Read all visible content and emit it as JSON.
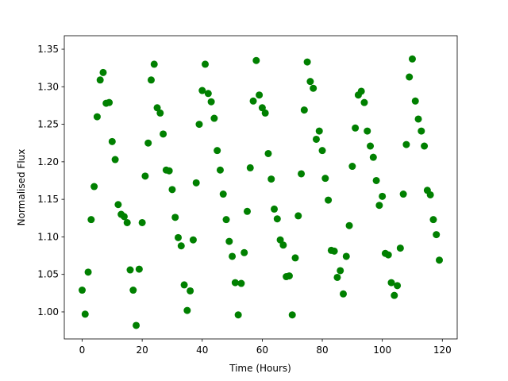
{
  "chart_data": {
    "type": "scatter",
    "xlabel": "Time (Hours)",
    "ylabel": "Normalised Flux",
    "color": "#008000",
    "x": [
      0,
      1,
      2,
      3,
      4,
      5,
      6,
      7,
      8,
      9,
      10,
      11,
      12,
      13,
      14,
      15,
      16,
      17,
      18,
      19,
      20,
      21,
      22,
      23,
      24,
      25,
      26,
      27,
      28,
      29,
      30,
      31,
      32,
      33,
      34,
      35,
      36,
      37,
      38,
      39,
      40,
      41,
      42,
      43,
      44,
      45,
      46,
      47,
      48,
      49,
      50,
      51,
      52,
      53,
      54,
      55,
      56,
      57,
      58,
      59,
      60,
      61,
      62,
      63,
      64,
      65,
      66,
      67,
      68,
      69,
      70,
      71,
      72,
      73,
      74,
      75,
      76,
      77,
      78,
      79,
      80,
      81,
      82,
      83,
      84,
      85,
      86,
      87,
      88,
      89,
      90,
      91,
      92,
      93,
      94,
      95,
      96,
      97,
      98,
      99,
      100,
      101,
      102,
      103,
      104,
      105,
      106,
      107,
      108,
      109,
      110,
      111,
      112,
      113,
      114,
      115,
      116,
      117,
      118,
      119
    ],
    "y": [
      1.029,
      0.997,
      1.053,
      1.123,
      1.167,
      1.26,
      1.309,
      1.319,
      1.278,
      1.279,
      1.227,
      1.203,
      1.143,
      1.13,
      1.127,
      1.119,
      1.056,
      1.029,
      0.982,
      1.057,
      1.119,
      1.181,
      1.225,
      1.309,
      1.33,
      1.272,
      1.265,
      1.237,
      1.189,
      1.188,
      1.163,
      1.126,
      1.099,
      1.088,
      1.036,
      1.002,
      1.028,
      1.096,
      1.172,
      1.25,
      1.295,
      1.33,
      1.291,
      1.28,
      1.258,
      1.215,
      1.189,
      1.157,
      1.123,
      1.094,
      1.074,
      1.039,
      0.996,
      1.038,
      1.079,
      1.134,
      1.192,
      1.281,
      1.335,
      1.289,
      1.272,
      1.265,
      1.211,
      1.177,
      1.137,
      1.124,
      1.096,
      1.089,
      1.047,
      1.048,
      0.996,
      1.072,
      1.128,
      1.184,
      1.269,
      1.333,
      1.307,
      1.298,
      1.23,
      1.241,
      1.215,
      1.178,
      1.149,
      1.082,
      1.081,
      1.046,
      1.055,
      1.024,
      1.074,
      1.115,
      1.194,
      1.245,
      1.289,
      1.294,
      1.279,
      1.241,
      1.221,
      1.206,
      1.175,
      1.142,
      1.154,
      1.078,
      1.076,
      1.039,
      1.022,
      1.035,
      1.085,
      1.157,
      1.223,
      1.313,
      1.337,
      1.281,
      1.257,
      1.241,
      1.221,
      1.162,
      1.156,
      1.123,
      1.103,
      1.069
    ],
    "xlim": [
      -5.95,
      124.95
    ],
    "ylim": [
      0.964,
      1.368
    ],
    "xticks": [
      0,
      20,
      40,
      60,
      80,
      100,
      120
    ],
    "yticks": [
      {
        "value": 1.0,
        "label": "1.00"
      },
      1.05,
      {
        "value": 1.1,
        "label": "1.10"
      },
      1.15,
      {
        "value": 1.2,
        "label": "1.20"
      },
      1.25,
      {
        "value": 1.3,
        "label": "1.30"
      },
      1.35
    ]
  }
}
